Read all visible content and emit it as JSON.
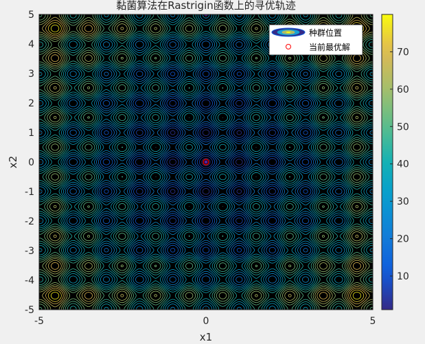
{
  "chart_data": {
    "type": "contour",
    "title": "黏菌算法在Rastrigin函数上的寻优轨迹",
    "xlabel": "x1",
    "ylabel": "x2",
    "xlim": [
      -5,
      5
    ],
    "ylim": [
      -5,
      5
    ],
    "xticks": [
      -5,
      0,
      5
    ],
    "yticks": [
      -5,
      -4,
      -3,
      -2,
      -1,
      0,
      1,
      2,
      3,
      4,
      5
    ],
    "xtick_labels": [
      "-5",
      "0",
      "5"
    ],
    "ytick_labels": [
      "-5",
      "-4",
      "-3",
      "-2",
      "-1",
      "0",
      "1",
      "2",
      "3",
      "4",
      "5"
    ],
    "function": "Rastrigin: 20 + x1^2 + x2^2 - 10(cos(2πx1) + cos(2πx2))",
    "colorbar": {
      "min": 1,
      "max": 80,
      "ticks": [
        10,
        20,
        30,
        40,
        50,
        60,
        70
      ],
      "tick_labels": [
        "10",
        "20",
        "30",
        "40",
        "50",
        "60",
        "70"
      ],
      "colormap": "parula"
    },
    "legend": {
      "position": "top-right",
      "entries": [
        {
          "label": "种群位置",
          "marker": "contour-swatch"
        },
        {
          "label": "当前最优解",
          "marker": "circle",
          "color": "#ff0000"
        }
      ]
    },
    "best_solution": {
      "x": 0,
      "y": 0
    },
    "population_points": [
      {
        "x": 0,
        "y": 0
      },
      {
        "x": 0,
        "y": 5
      }
    ],
    "grid": false
  }
}
